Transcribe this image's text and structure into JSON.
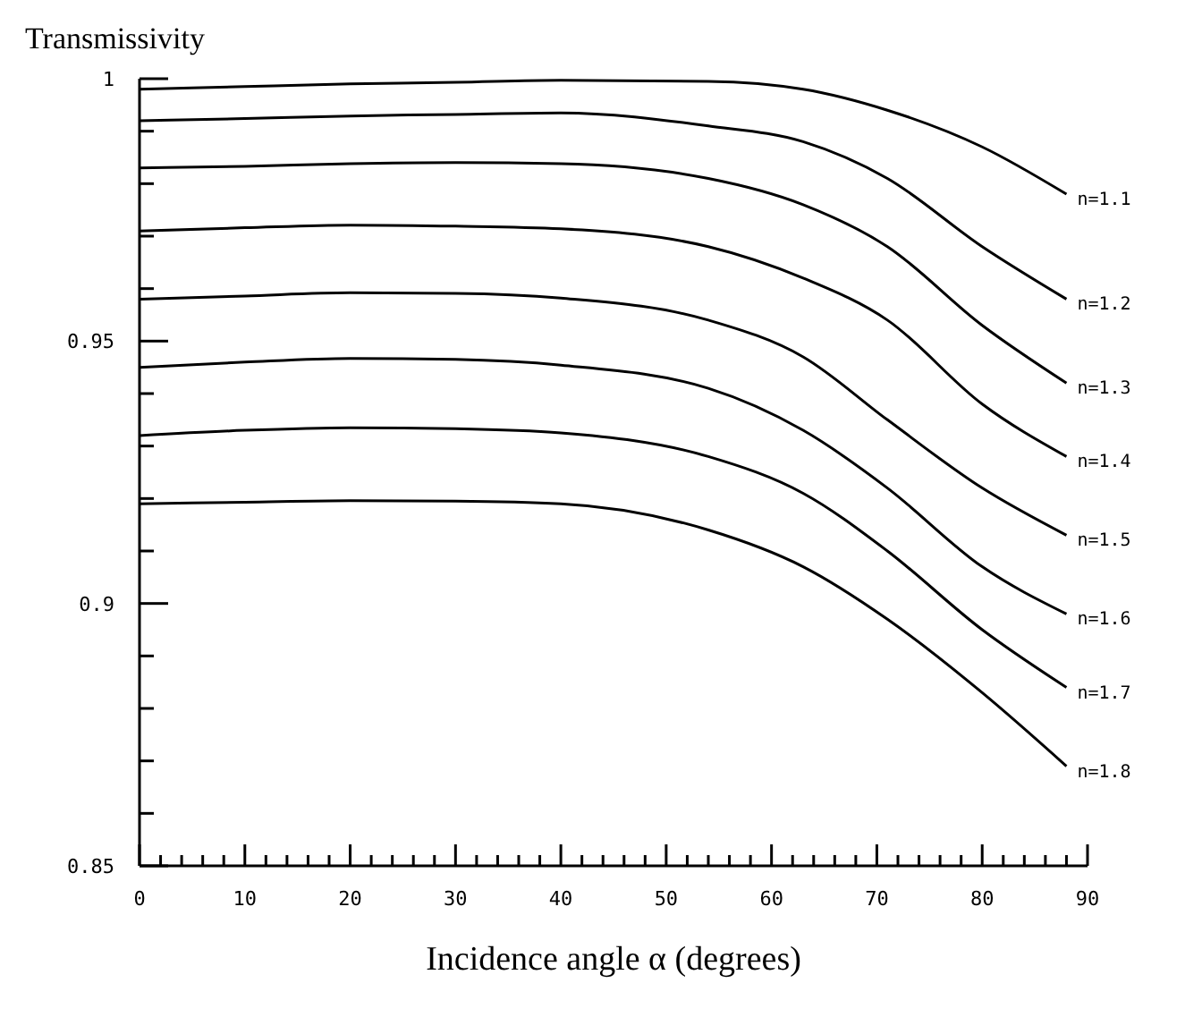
{
  "chart_data": {
    "type": "line",
    "ylabel": "Transmissivity",
    "xlabel": "Incidence angle α (degrees)",
    "x": [
      0,
      10,
      20,
      30,
      40,
      54,
      63,
      71,
      80,
      88
    ],
    "series": [
      {
        "name": "n=1.1",
        "color": "#000000",
        "values": [
          0.998,
          0.9985,
          0.999,
          0.9993,
          0.9997,
          0.9995,
          0.998,
          0.994,
          0.987,
          0.978
        ]
      },
      {
        "name": "n=1.2",
        "color": "#000000",
        "values": [
          0.992,
          0.9924,
          0.9929,
          0.9932,
          0.9935,
          0.991,
          0.988,
          0.981,
          0.968,
          0.958
        ]
      },
      {
        "name": "n=1.3",
        "color": "#000000",
        "values": [
          0.983,
          0.9833,
          0.9838,
          0.984,
          0.9838,
          0.981,
          0.976,
          0.968,
          0.953,
          0.942
        ]
      },
      {
        "name": "n=1.4",
        "color": "#000000",
        "values": [
          0.971,
          0.9716,
          0.9721,
          0.9719,
          0.9714,
          0.968,
          0.962,
          0.954,
          0.938,
          0.928
        ]
      },
      {
        "name": "n=1.5",
        "color": "#000000",
        "values": [
          0.958,
          0.9586,
          0.9592,
          0.9591,
          0.9582,
          0.954,
          0.947,
          0.935,
          0.922,
          0.913
        ]
      },
      {
        "name": "n=1.6",
        "color": "#000000",
        "values": [
          0.945,
          0.946,
          0.9467,
          0.9465,
          0.9454,
          0.941,
          0.933,
          0.922,
          0.907,
          0.898
        ]
      },
      {
        "name": "n=1.7",
        "color": "#000000",
        "values": [
          0.932,
          0.933,
          0.9335,
          0.9333,
          0.9325,
          0.928,
          0.921,
          0.91,
          0.895,
          0.884
        ]
      },
      {
        "name": "n=1.8",
        "color": "#000000",
        "values": [
          0.919,
          0.9193,
          0.9196,
          0.9195,
          0.919,
          0.914,
          0.907,
          0.897,
          0.883,
          0.869
        ]
      }
    ],
    "xlim": [
      0,
      90
    ],
    "xticks": [
      0,
      {
        "value": 2,
        "label": null
      },
      {
        "value": 4,
        "label": null
      },
      {
        "value": 6,
        "label": null
      },
      {
        "value": 8,
        "label": null
      },
      10,
      {
        "value": 12,
        "label": null
      },
      {
        "value": 14,
        "label": null
      },
      {
        "value": 16,
        "label": null
      },
      {
        "value": 18,
        "label": null
      },
      20,
      {
        "value": 22,
        "label": null
      },
      {
        "value": 24,
        "label": null
      },
      {
        "value": 26,
        "label": null
      },
      {
        "value": 28,
        "label": null
      },
      30,
      {
        "value": 32,
        "label": null
      },
      {
        "value": 34,
        "label": null
      },
      {
        "value": 36,
        "label": null
      },
      {
        "value": 38,
        "label": null
      },
      40,
      {
        "value": 42,
        "label": null
      },
      {
        "value": 44,
        "label": null
      },
      {
        "value": 46,
        "label": null
      },
      {
        "value": 48,
        "label": null
      },
      50,
      {
        "value": 52,
        "label": null
      },
      {
        "value": 54,
        "label": null
      },
      {
        "value": 56,
        "label": null
      },
      {
        "value": 58,
        "label": null
      },
      60,
      {
        "value": 62,
        "label": null
      },
      {
        "value": 64,
        "label": null
      },
      {
        "value": 66,
        "label": null
      },
      {
        "value": 68,
        "label": null
      },
      70,
      {
        "value": 72,
        "label": null
      },
      {
        "value": 74,
        "label": null
      },
      {
        "value": 76,
        "label": null
      },
      {
        "value": 78,
        "label": null
      },
      80,
      {
        "value": 82,
        "label": null
      },
      {
        "value": 84,
        "label": null
      },
      {
        "value": 86,
        "label": null
      },
      {
        "value": 88,
        "label": null
      },
      90
    ],
    "ylim": [
      0.85,
      1
    ],
    "yticks": [
      0.85,
      {
        "value": 0.86,
        "label": null
      },
      {
        "value": 0.87,
        "label": null
      },
      {
        "value": 0.88,
        "label": null
      },
      {
        "value": 0.89,
        "label": null
      },
      0.9,
      {
        "value": 0.91,
        "label": null
      },
      {
        "value": 0.92,
        "label": null
      },
      {
        "value": 0.93,
        "label": null
      },
      {
        "value": 0.94,
        "label": null
      },
      0.95,
      {
        "value": 0.96,
        "label": null
      },
      {
        "value": 0.97,
        "label": null
      },
      {
        "value": 0.98,
        "label": null
      },
      {
        "value": 0.99,
        "label": null
      },
      1
    ],
    "grid": false,
    "legend": false,
    "marker": "none",
    "line_style": "solid"
  }
}
